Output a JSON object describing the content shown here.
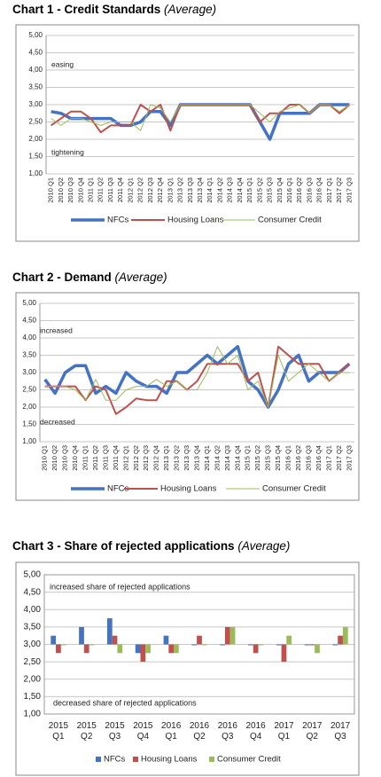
{
  "chart_data": [
    {
      "type": "line",
      "title": "Chart 1 - Credit Standards",
      "subtitle": "(Average)",
      "categories": [
        "2010 Q1",
        "2010 Q2",
        "2010 Q3",
        "2010 Q4",
        "2011 Q1",
        "2011 Q2",
        "2011 Q3",
        "2011 Q4",
        "2012 Q1",
        "2012 Q2",
        "2012 Q3",
        "2012 Q4",
        "2013 Q1",
        "2013 Q2",
        "2013 Q3",
        "2013 Q4",
        "2014 Q1",
        "2014 Q2",
        "2014 Q3",
        "2014 Q4",
        "2015 Q1",
        "2015 Q2",
        "2015 Q3",
        "2015 Q4",
        "2016 Q1",
        "2016 Q2",
        "2016 Q3",
        "2016 Q4",
        "2017 Q1",
        "2017 Q2",
        "2017 Q3"
      ],
      "series": [
        {
          "name": "NFCs",
          "color": "#4472c4",
          "values": [
            2.8,
            2.75,
            2.6,
            2.6,
            2.6,
            2.6,
            2.6,
            2.4,
            2.4,
            2.5,
            2.8,
            2.8,
            2.4,
            3.0,
            3.0,
            3.0,
            3.0,
            3.0,
            3.0,
            3.0,
            3.0,
            2.5,
            2.0,
            2.75,
            2.75,
            2.75,
            2.75,
            3.0,
            3.0,
            3.0,
            3.0
          ]
        },
        {
          "name": "Housing Loans",
          "color": "#c0504d",
          "values": [
            2.4,
            2.6,
            2.8,
            2.8,
            2.6,
            2.2,
            2.4,
            2.4,
            2.4,
            3.0,
            2.8,
            3.0,
            2.25,
            3.0,
            3.0,
            3.0,
            3.0,
            3.0,
            3.0,
            3.0,
            3.0,
            2.5,
            2.75,
            2.75,
            3.0,
            3.0,
            2.75,
            3.0,
            3.0,
            2.75,
            3.0
          ]
        },
        {
          "name": "Consumer Credit",
          "color": "#9bbb59",
          "values": [
            2.6,
            2.4,
            2.6,
            2.6,
            2.5,
            2.4,
            2.5,
            2.5,
            2.5,
            2.25,
            3.0,
            2.9,
            2.5,
            3.0,
            3.0,
            3.0,
            3.0,
            3.0,
            3.0,
            3.0,
            3.0,
            2.75,
            2.5,
            2.8,
            2.9,
            3.0,
            2.75,
            3.0,
            3.0,
            2.8,
            3.0
          ]
        }
      ],
      "annotations": [
        "easing",
        "tightening"
      ],
      "ylim": [
        1,
        5
      ],
      "yticks": [
        {
          "value": 1,
          "label": "1,00"
        },
        {
          "value": 1.5,
          "label": "1,50"
        },
        {
          "value": 2,
          "label": "2,00"
        },
        {
          "value": 2.5,
          "label": "2,50"
        },
        {
          "value": 3,
          "label": "3,00"
        },
        {
          "value": 3.5,
          "label": "3,50"
        },
        {
          "value": 4,
          "label": "4,00"
        },
        {
          "value": 4.5,
          "label": "4,50"
        },
        {
          "value": 5,
          "label": "5,00"
        }
      ],
      "grid": true,
      "legend": "bottom"
    },
    {
      "type": "line",
      "title": "Chart 2 - Demand",
      "subtitle": "(Average)",
      "categories": [
        "2010 Q1",
        "2010 Q2",
        "2010 Q3",
        "2010 Q4",
        "2011 Q1",
        "2011 Q2",
        "2011 Q3",
        "2011 Q4",
        "2012 Q1",
        "2012 Q2",
        "2012 Q3",
        "2012 Q4",
        "2013 Q1",
        "2013 Q2",
        "2013 Q3",
        "2013 Q4",
        "2014 Q1",
        "2014 Q2",
        "2014 Q3",
        "2014 Q4",
        "2015 Q1",
        "2015 Q2",
        "2015 Q3",
        "2015 Q4",
        "2016 Q1",
        "2016 Q2",
        "2016 Q3",
        "2016 Q4",
        "2017 Q1",
        "2017 Q2",
        "2017 Q3"
      ],
      "series": [
        {
          "name": "NFCs",
          "color": "#4472c4",
          "values": [
            2.8,
            2.4,
            3.0,
            3.2,
            3.2,
            2.4,
            2.6,
            2.4,
            3.0,
            2.75,
            2.6,
            2.6,
            2.4,
            3.0,
            3.0,
            3.25,
            3.5,
            3.25,
            3.5,
            3.75,
            2.75,
            2.5,
            2.0,
            2.5,
            3.25,
            3.5,
            2.75,
            3.0,
            3.0,
            3.0,
            3.25
          ]
        },
        {
          "name": "Housing Loans",
          "color": "#c0504d",
          "values": [
            2.6,
            2.6,
            2.6,
            2.6,
            2.2,
            2.6,
            2.5,
            1.8,
            2.0,
            2.25,
            2.2,
            2.2,
            2.75,
            2.75,
            2.5,
            2.75,
            3.25,
            3.25,
            3.25,
            3.25,
            2.75,
            3.0,
            2.0,
            3.75,
            3.5,
            3.25,
            3.25,
            3.25,
            2.75,
            3.0,
            3.25
          ]
        },
        {
          "name": "Consumer Credit",
          "color": "#9bbb59",
          "values": [
            2.6,
            2.6,
            2.6,
            2.5,
            2.2,
            2.8,
            2.2,
            2.2,
            2.5,
            2.6,
            2.6,
            2.8,
            2.6,
            2.75,
            2.5,
            2.5,
            3.0,
            3.75,
            3.25,
            3.5,
            2.5,
            2.75,
            2.0,
            3.5,
            2.75,
            3.0,
            3.25,
            3.0,
            2.75,
            3.0,
            3.0
          ]
        }
      ],
      "annotations": [
        "increased",
        "decreased"
      ],
      "ylim": [
        1,
        5
      ],
      "yticks": [
        {
          "value": 1,
          "label": "1,00"
        },
        {
          "value": 1.5,
          "label": "1,50"
        },
        {
          "value": 2,
          "label": "2,00"
        },
        {
          "value": 2.5,
          "label": "2,50"
        },
        {
          "value": 3,
          "label": "3,00"
        },
        {
          "value": 3.5,
          "label": "3,50"
        },
        {
          "value": 4,
          "label": "4,00"
        },
        {
          "value": 4.5,
          "label": "4,50"
        },
        {
          "value": 5,
          "label": "5,00"
        }
      ],
      "grid": true,
      "legend": "bottom"
    },
    {
      "type": "bar",
      "title": "Chart 3 - Share of rejected applications",
      "subtitle": "(Average)",
      "categories": [
        "2015 Q1",
        "2015 Q2",
        "2015 Q3",
        "2015 Q4",
        "2016 Q1",
        "2016 Q2",
        "2016 Q3",
        "2016 Q4",
        "2017 Q1",
        "2017 Q2",
        "2017 Q3"
      ],
      "series": [
        {
          "name": "NFCs",
          "color": "#4472c4",
          "values": [
            3.25,
            3.5,
            3.75,
            2.75,
            3.25,
            3.0,
            3.0,
            3.0,
            3.0,
            3.0,
            3.0
          ]
        },
        {
          "name": "Housing Loans",
          "color": "#c0504d",
          "values": [
            2.75,
            2.75,
            3.25,
            2.5,
            2.75,
            3.25,
            3.5,
            2.75,
            2.5,
            3.0,
            3.25
          ]
        },
        {
          "name": "Consumer Credit",
          "color": "#9bbb59",
          "values": [
            3.0,
            3.0,
            2.75,
            2.75,
            2.75,
            3.0,
            3.5,
            3.0,
            3.25,
            2.75,
            3.5
          ]
        }
      ],
      "annotations": [
        "increased share of rejected applications",
        "decreased share of rejected applications"
      ],
      "ylim": [
        1,
        5
      ],
      "axis_cross": 3,
      "yticks": [
        {
          "value": 1,
          "label": "1,00"
        },
        {
          "value": 1.5,
          "label": "1,50"
        },
        {
          "value": 2,
          "label": "2,00"
        },
        {
          "value": 2.5,
          "label": "2,50"
        },
        {
          "value": 3,
          "label": "3,00"
        },
        {
          "value": 3.5,
          "label": "3,50"
        },
        {
          "value": 4,
          "label": "4,00"
        },
        {
          "value": 4.5,
          "label": "4,50"
        },
        {
          "value": 5,
          "label": "5,00"
        }
      ],
      "grid": true,
      "legend": "bottom"
    }
  ]
}
